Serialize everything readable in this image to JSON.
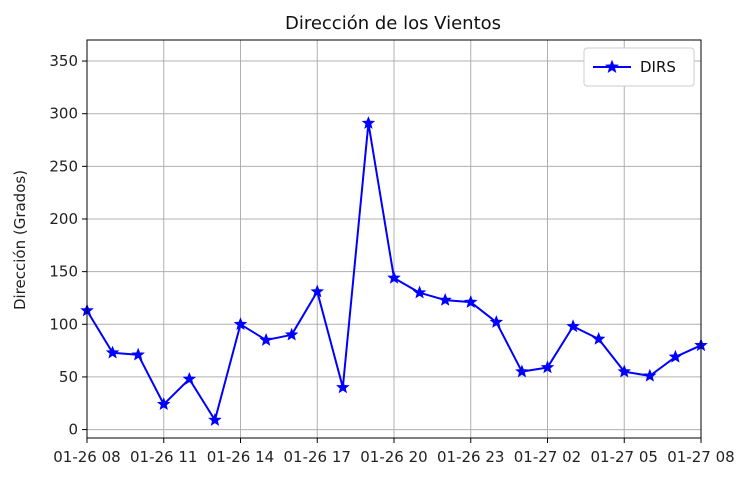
{
  "chart_data": {
    "type": "line",
    "title": "Dirección de los Vientos",
    "xlabel": "",
    "ylabel": "Dirección (Grados)",
    "ylim": [
      -8,
      370
    ],
    "yticks": [
      0,
      50,
      100,
      150,
      200,
      250,
      300,
      350
    ],
    "xlim": [
      "01-26 08:00",
      "01-27 08:00"
    ],
    "xticks": [
      "01-26 08",
      "01-26 11",
      "01-26 14",
      "01-26 17",
      "01-26 20",
      "01-26 23",
      "01-27 02",
      "01-27 05",
      "01-27 08"
    ],
    "grid": true,
    "legend_position": "upper right",
    "series": [
      {
        "name": "DIRS",
        "color": "#0000ff",
        "marker": "star",
        "x": [
          "01-26 08:00",
          "01-26 09:00",
          "01-26 10:00",
          "01-26 11:00",
          "01-26 12:00",
          "01-26 13:00",
          "01-26 14:00",
          "01-26 15:00",
          "01-26 16:00",
          "01-26 17:00",
          "01-26 18:00",
          "01-26 19:00",
          "01-26 20:00",
          "01-26 21:00",
          "01-26 22:00",
          "01-26 23:00",
          "01-27 00:00",
          "01-27 01:00",
          "01-27 02:00",
          "01-27 03:00",
          "01-27 04:00",
          "01-27 05:00",
          "01-27 06:00",
          "01-27 07:00",
          "01-27 08:00"
        ],
        "values": [
          113,
          73,
          71,
          24,
          48,
          9,
          100,
          85,
          90,
          131,
          40,
          291,
          144,
          130,
          123,
          121,
          102,
          55,
          59,
          98,
          86,
          55,
          51,
          69,
          80
        ]
      }
    ]
  }
}
